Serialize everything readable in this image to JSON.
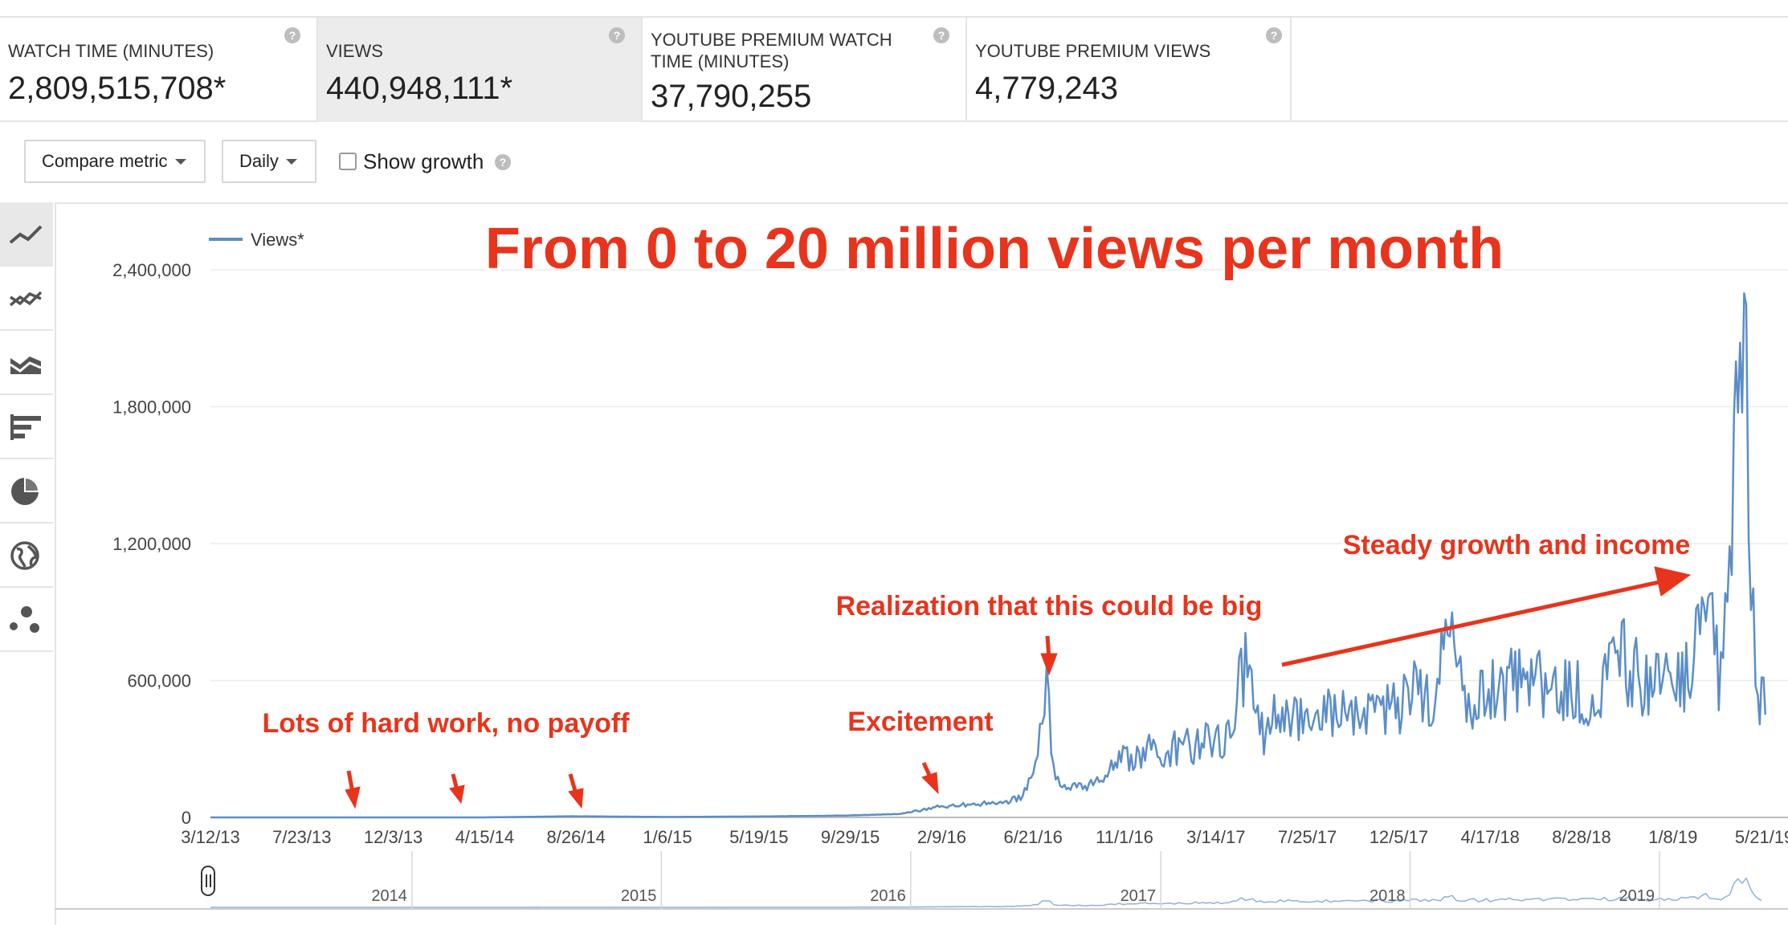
{
  "metrics": [
    {
      "label": "WATCH TIME (MINUTES)",
      "value": "2,809,515,708*"
    },
    {
      "label": "VIEWS",
      "value": "440,948,111*"
    },
    {
      "label": "YOUTUBE PREMIUM WATCH TIME (MINUTES)",
      "value": "37,790,255"
    },
    {
      "label": "YOUTUBE PREMIUM VIEWS",
      "value": "4,779,243"
    }
  ],
  "help_glyph": "?",
  "controls": {
    "compare_metric": "Compare metric",
    "interval": "Daily",
    "show_growth": "Show growth",
    "show_growth_checked": false
  },
  "sidebar": {
    "icons": [
      "line-chart-icon",
      "multi-line-chart-icon",
      "area-chart-icon",
      "bar-chart-icon",
      "pie-chart-icon",
      "globe-icon",
      "bubble-chart-icon"
    ],
    "active_index": 0
  },
  "annotations": {
    "title": "From 0 to 20 million views per month",
    "hard_work": "Lots of hard work, no payoff",
    "excitement": "Excitement",
    "realization": "Realization that this could be big",
    "steady": "Steady growth and income"
  },
  "colors": {
    "series": "#5b8ec7",
    "annotation": "#e8341c",
    "grid": "#ececec"
  },
  "chart_data": {
    "type": "line",
    "legend": "Views*",
    "legend_position": "top-left",
    "grid": true,
    "ylim": [
      0,
      2400000
    ],
    "yticks": [
      {
        "value": 0,
        "label": "0"
      },
      {
        "value": 600000,
        "label": "600,000"
      },
      {
        "value": 1200000,
        "label": "1,200,000"
      },
      {
        "value": 1800000,
        "label": "1,800,000"
      },
      {
        "value": 2400000,
        "label": "2,400,000"
      }
    ],
    "xticks": [
      "3/12/13",
      "7/23/13",
      "12/3/13",
      "4/15/14",
      "8/26/14",
      "1/6/15",
      "5/19/15",
      "9/29/15",
      "2/9/16",
      "6/21/16",
      "11/1/16",
      "3/14/17",
      "7/25/17",
      "12/5/17",
      "4/17/18",
      "8/28/18",
      "1/8/19",
      "5/21/19"
    ],
    "series": [
      {
        "name": "Views*",
        "points": [
          [
            "2013-03-12",
            0
          ],
          [
            "2013-07-23",
            0
          ],
          [
            "2013-12-03",
            0
          ],
          [
            "2014-04-15",
            0
          ],
          [
            "2014-08-26",
            5000
          ],
          [
            "2015-01-06",
            2000
          ],
          [
            "2015-05-19",
            4000
          ],
          [
            "2015-09-29",
            8000
          ],
          [
            "2015-12-15",
            15000
          ],
          [
            "2016-01-15",
            30000
          ],
          [
            "2016-02-09",
            45000
          ],
          [
            "2016-03-15",
            55000
          ],
          [
            "2016-04-15",
            60000
          ],
          [
            "2016-05-20",
            65000
          ],
          [
            "2016-06-10",
            90000
          ],
          [
            "2016-06-25",
            170000
          ],
          [
            "2016-07-05",
            250000
          ],
          [
            "2016-07-18",
            580000
          ],
          [
            "2016-07-28",
            200000
          ],
          [
            "2016-08-10",
            150000
          ],
          [
            "2016-09-15",
            130000
          ],
          [
            "2016-10-15",
            200000
          ],
          [
            "2016-11-01",
            250000
          ],
          [
            "2016-12-15",
            300000
          ],
          [
            "2017-01-15",
            290000
          ],
          [
            "2017-02-15",
            320000
          ],
          [
            "2017-03-14",
            340000
          ],
          [
            "2017-04-10",
            360000
          ],
          [
            "2017-05-05",
            660000
          ],
          [
            "2017-06-01",
            380000
          ],
          [
            "2017-07-01",
            500000
          ],
          [
            "2017-07-25",
            430000
          ],
          [
            "2017-08-25",
            450000
          ],
          [
            "2017-10-01",
            480000
          ],
          [
            "2017-11-01",
            500000
          ],
          [
            "2017-12-05",
            470000
          ],
          [
            "2018-01-10",
            560000
          ],
          [
            "2018-02-10",
            520000
          ],
          [
            "2018-02-25",
            900000
          ],
          [
            "2018-03-10",
            560000
          ],
          [
            "2018-04-17",
            520000
          ],
          [
            "2018-06-01",
            600000
          ],
          [
            "2018-07-15",
            580000
          ],
          [
            "2018-08-28",
            560000
          ],
          [
            "2018-10-01",
            560000
          ],
          [
            "2018-11-10",
            700000
          ],
          [
            "2018-12-10",
            580000
          ],
          [
            "2019-01-08",
            570000
          ],
          [
            "2019-02-15",
            640000
          ],
          [
            "2019-03-10",
            900000
          ],
          [
            "2019-04-01",
            600000
          ],
          [
            "2019-04-20",
            1550000
          ],
          [
            "2019-05-08",
            2300000
          ],
          [
            "2019-05-15",
            1100000
          ],
          [
            "2019-05-25",
            600000
          ],
          [
            "2019-06-05",
            450000
          ]
        ]
      }
    ],
    "navigator": {
      "years": [
        "2014",
        "2015",
        "2016",
        "2017",
        "2018",
        "2019"
      ]
    }
  }
}
